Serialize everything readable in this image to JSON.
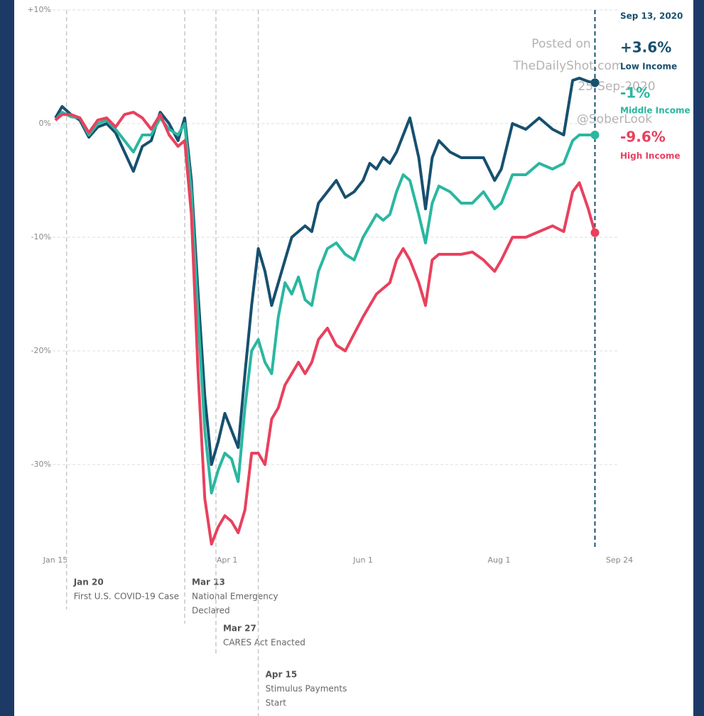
{
  "chart_data": {
    "type": "line",
    "x": [
      15,
      18,
      22,
      26,
      30,
      34,
      38,
      42,
      46,
      50,
      54,
      58,
      62,
      66,
      70,
      73,
      76,
      79,
      82,
      85,
      88,
      91,
      94,
      97,
      100,
      103,
      106,
      109,
      112,
      115,
      118,
      121,
      124,
      127,
      130,
      133,
      137,
      141,
      145,
      149,
      153,
      156,
      159,
      162,
      165,
      168,
      171,
      174,
      178,
      181,
      184,
      187,
      192,
      197,
      202,
      207,
      212,
      215,
      220,
      226,
      232,
      238,
      243,
      247,
      250,
      254,
      257
    ],
    "series": [
      {
        "name": "Low Income",
        "color": "#17506f",
        "values": [
          0.5,
          1.5,
          0.8,
          0.3,
          -1.2,
          -0.3,
          0,
          -0.8,
          -2.5,
          -4.2,
          -2,
          -1.5,
          1,
          0,
          -1.5,
          0.5,
          -5,
          -15,
          -24,
          -30,
          -28,
          -25.5,
          -27,
          -28.5,
          -22,
          -16,
          -11,
          -13,
          -16,
          -14,
          -12,
          -10,
          -9.5,
          -9,
          -9.5,
          -7,
          -6,
          -5,
          -6.5,
          -6,
          -5,
          -3.5,
          -4,
          -3,
          -3.5,
          -2.5,
          -1,
          0.5,
          -3,
          -7.5,
          -3,
          -1.5,
          -2.5,
          -3,
          -3,
          -3,
          -5,
          -4,
          0,
          -0.5,
          0.5,
          -0.5,
          -1,
          3.8,
          4,
          3.7,
          3.6
        ]
      },
      {
        "name": "Middle Income",
        "color": "#2ab7a0",
        "values": [
          0.3,
          1,
          0.6,
          0.5,
          -1,
          0,
          0.3,
          -0.5,
          -1.5,
          -2.5,
          -1,
          -1,
          0.5,
          -0.5,
          -1,
          0,
          -6,
          -17,
          -27,
          -32.5,
          -30.5,
          -29,
          -29.5,
          -31.5,
          -25,
          -20,
          -19,
          -21,
          -22,
          -17,
          -14,
          -15,
          -13.5,
          -15.5,
          -16,
          -13,
          -11,
          -10.5,
          -11.5,
          -12,
          -10,
          -9,
          -8,
          -8.5,
          -8,
          -6,
          -4.5,
          -5,
          -8,
          -10.5,
          -7,
          -5.5,
          -6,
          -7,
          -7,
          -6,
          -7.5,
          -7,
          -4.5,
          -4.5,
          -3.5,
          -4,
          -3.5,
          -1.5,
          -1,
          -1,
          -1
        ]
      },
      {
        "name": "High Income",
        "color": "#e8415e",
        "values": [
          0.3,
          0.8,
          0.8,
          0.5,
          -0.8,
          0.3,
          0.5,
          -0.3,
          0.8,
          1,
          0.5,
          -0.5,
          0.8,
          -1,
          -2,
          -1.5,
          -8,
          -22,
          -33,
          -37,
          -35.5,
          -34.5,
          -35,
          -36,
          -34,
          -29,
          -29,
          -30,
          -26,
          -25,
          -23,
          -22,
          -21,
          -22,
          -21,
          -19,
          -18,
          -19.5,
          -20,
          -18.5,
          -17,
          -16,
          -15,
          -14.5,
          -14,
          -12,
          -11,
          -12,
          -14,
          -16,
          -12,
          -11.5,
          -11.5,
          -11.5,
          -11.3,
          -12,
          -13,
          -12,
          -10,
          -10,
          -9.5,
          -9,
          -9.5,
          -6,
          -5.2,
          -7.5,
          -9.6
        ]
      }
    ],
    "end_date": {
      "value": 257,
      "label": "Sep 13, 2020"
    },
    "end_value_labels": [
      "+3.6%",
      "-1%",
      "-9.6%"
    ],
    "xlim": [
      15,
      268
    ],
    "xticks": [
      {
        "value": 15,
        "label": "Jan 15"
      },
      {
        "value": 92,
        "label": "Apr 1"
      },
      {
        "value": 153,
        "label": "Jun 1"
      },
      {
        "value": 214,
        "label": "Aug 1"
      },
      {
        "value": 268,
        "label": "Sep 24"
      }
    ],
    "ylim": [
      -37,
      10
    ],
    "yticks": [
      {
        "value": 10,
        "label": "+10%"
      },
      {
        "value": 0,
        "label": "0%"
      },
      {
        "value": -10,
        "label": "-10%"
      },
      {
        "value": -20,
        "label": "-20%"
      },
      {
        "value": -30,
        "label": "-30%"
      }
    ],
    "grid": true,
    "events": [
      {
        "x": 20,
        "date": "Jan 20",
        "lines": [
          "First U.S. COVID-19 Case"
        ]
      },
      {
        "x": 73,
        "date": "Mar 13",
        "lines": [
          "National Emergency",
          "Declared"
        ]
      },
      {
        "x": 87,
        "date": "Mar 27",
        "lines": [
          "CARES Act Enacted"
        ]
      },
      {
        "x": 106,
        "date": "Apr 15",
        "lines": [
          "Stimulus Payments",
          "Start"
        ]
      }
    ],
    "watermark": [
      "Posted on",
      "TheDailyShot.com",
      "25-Sep-2020",
      "@SoberLook"
    ]
  }
}
